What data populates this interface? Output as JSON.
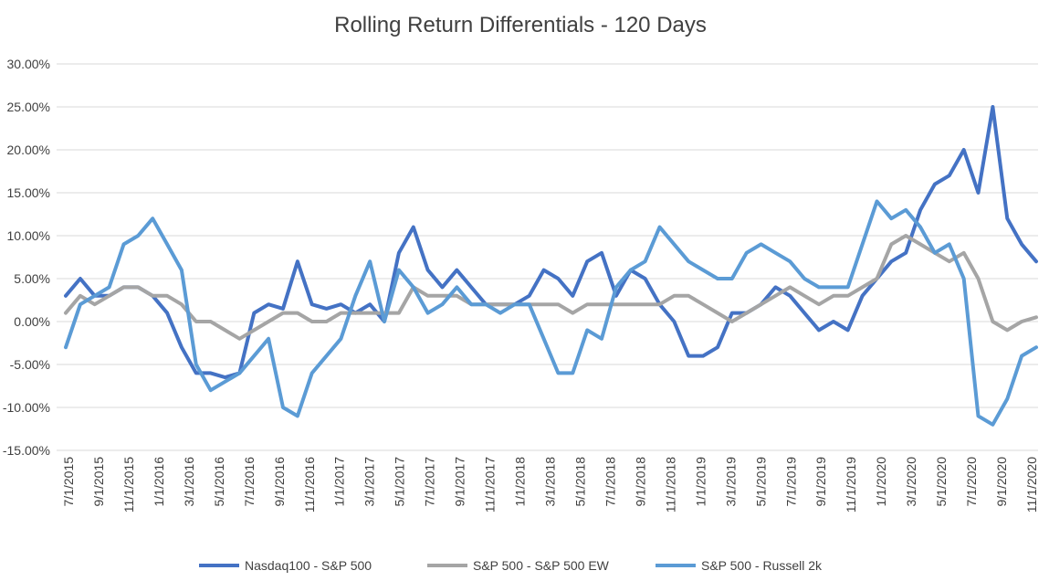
{
  "chart_data": {
    "type": "line",
    "title": "Rolling Return Differentials - 120 Days",
    "xlabel": "",
    "ylabel": "",
    "ylim": [
      -15,
      30
    ],
    "y_ticks": [
      30,
      25,
      20,
      15,
      10,
      5,
      0,
      -5,
      -10,
      -15
    ],
    "y_tick_labels": [
      "30.00%",
      "25.00%",
      "20.00%",
      "15.00%",
      "10.00%",
      "5.00%",
      "0.00%",
      "-5.00%",
      "-10.00%",
      "-15.00%"
    ],
    "x_tick_labels": [
      "7/1/2015",
      "9/1/2015",
      "11/1/2015",
      "1/1/2016",
      "3/1/2016",
      "5/1/2016",
      "7/1/2016",
      "9/1/2016",
      "11/1/2016",
      "1/1/2017",
      "3/1/2017",
      "5/1/2017",
      "7/1/2017",
      "9/1/2017",
      "11/1/2017",
      "1/1/2018",
      "3/1/2018",
      "5/1/2018",
      "7/1/2018",
      "9/1/2018",
      "11/1/2018",
      "1/1/2019",
      "3/1/2019",
      "5/1/2019",
      "7/1/2019",
      "9/1/2019",
      "11/1/2019",
      "1/1/2020",
      "3/1/2020",
      "5/1/2020",
      "7/1/2020",
      "9/1/2020",
      "11/1/2020"
    ],
    "grid": true,
    "legend_position": "bottom",
    "series": [
      {
        "name": "Nasdaq100 - S&P 500",
        "color": "#4472c4",
        "values": [
          3,
          5,
          3,
          3,
          4,
          4,
          3,
          1,
          -3,
          -6,
          -6,
          -6.5,
          -6,
          1,
          2,
          1.5,
          7,
          2,
          1.5,
          2,
          1,
          2,
          0,
          8,
          11,
          6,
          4,
          6,
          4,
          2,
          2,
          2,
          3,
          6,
          5,
          3,
          7,
          8,
          3,
          6,
          5,
          2,
          0,
          -4,
          -4,
          -3,
          1,
          1,
          2,
          4,
          3,
          1,
          -1,
          0,
          -1,
          3,
          5,
          7,
          8,
          13,
          16,
          17,
          20,
          15,
          25,
          12,
          9,
          7
        ]
      },
      {
        "name": "S&P 500 - S&P 500 EW",
        "color": "#a5a5a5",
        "values": [
          1,
          3,
          2,
          3,
          4,
          4,
          3,
          3,
          2,
          0,
          0,
          -1,
          -2,
          -1,
          0,
          1,
          1,
          0,
          0,
          1,
          1,
          1,
          1,
          1,
          4,
          3,
          3,
          3,
          2,
          2,
          2,
          2,
          2,
          2,
          2,
          1,
          2,
          2,
          2,
          2,
          2,
          2,
          3,
          3,
          2,
          1,
          0,
          1,
          2,
          3,
          4,
          3,
          2,
          3,
          3,
          4,
          5,
          9,
          10,
          9,
          8,
          7,
          8,
          5,
          0,
          -1,
          0,
          0.5
        ]
      },
      {
        "name": "S&P 500 - Russell 2k",
        "color": "#5b9bd5",
        "values": [
          -3,
          2,
          3,
          4,
          9,
          10,
          12,
          9,
          6,
          -5,
          -8,
          -7,
          -6,
          -4,
          -2,
          -10,
          -11,
          -6,
          -4,
          -2,
          3,
          7,
          0,
          6,
          4,
          1,
          2,
          4,
          2,
          2,
          1,
          2,
          2,
          -2,
          -6,
          -6,
          -1,
          -2,
          4,
          6,
          7,
          11,
          9,
          7,
          6,
          5,
          5,
          8,
          9,
          8,
          7,
          5,
          4,
          4,
          4,
          9,
          14,
          12,
          13,
          11,
          8,
          9,
          5,
          -11,
          -12,
          -9,
          -4,
          -3
        ]
      }
    ]
  }
}
